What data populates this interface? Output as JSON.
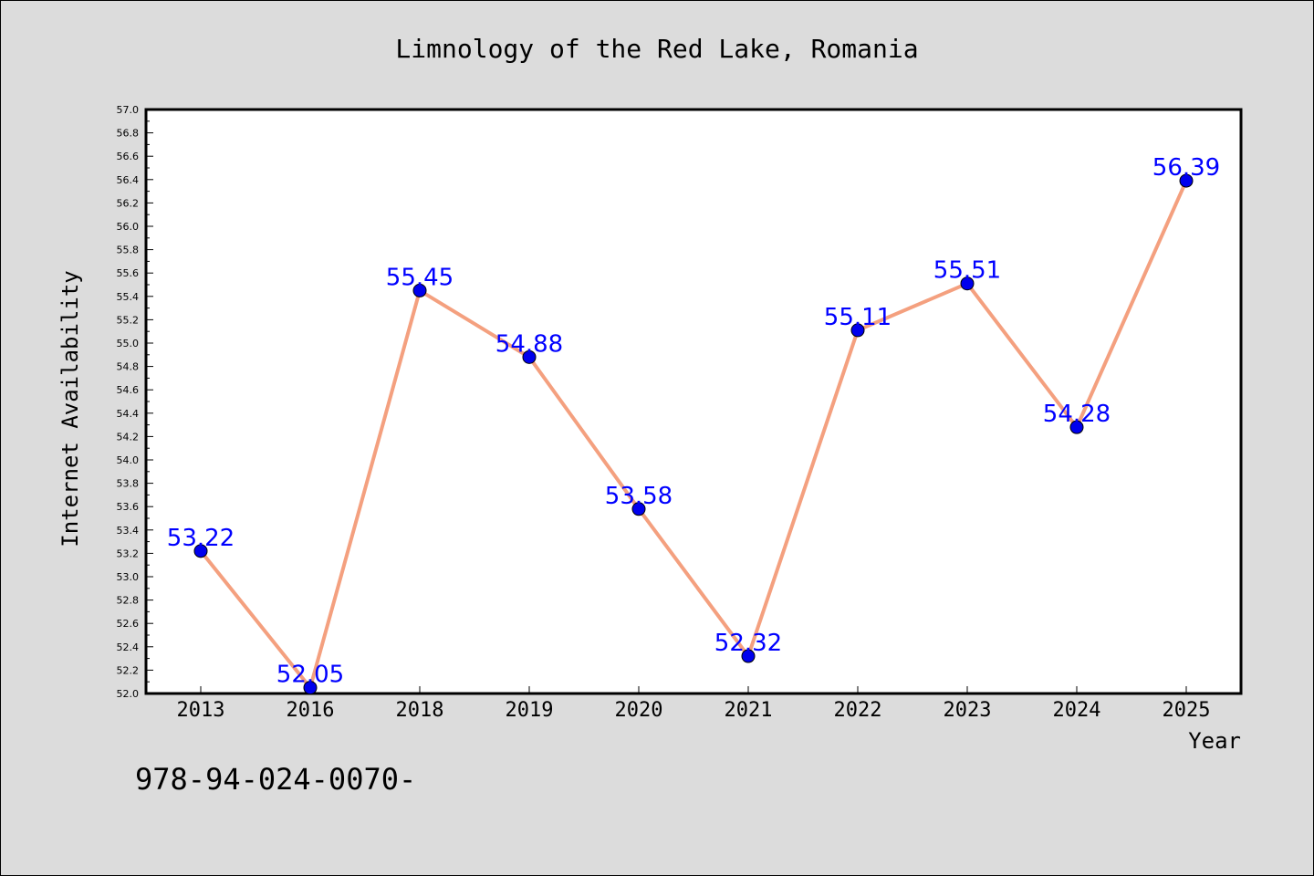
{
  "page": {
    "footer_text": "978-94-024-0070-"
  },
  "chart_data": {
    "type": "line",
    "title": "Limnology of the Red Lake, Romania",
    "xlabel": "Year",
    "ylabel": "Internet Availability",
    "categories": [
      "2013",
      "2016",
      "2018",
      "2019",
      "2020",
      "2021",
      "2022",
      "2023",
      "2024",
      "2025"
    ],
    "series": [
      {
        "values": [
          53.22,
          52.05,
          55.45,
          54.88,
          53.58,
          52.32,
          55.11,
          55.51,
          54.28,
          56.39
        ],
        "labels": [
          "53.22",
          "52.05",
          "55.45",
          "54.88",
          "53.58",
          "52.32",
          "55.11",
          "55.51",
          "54.28",
          "56.39"
        ],
        "line_color": "#f4a07f",
        "marker_color": "#0000ee",
        "label_color": "#0000ff"
      }
    ],
    "ylim": [
      52.0,
      57.0
    ],
    "y_ticks": [
      "52.0",
      "52.2",
      "52.4",
      "52.6",
      "52.8",
      "53.0",
      "53.2",
      "53.4",
      "53.6",
      "53.8",
      "54.0",
      "54.2",
      "54.4",
      "54.6",
      "54.8",
      "55.0",
      "55.2",
      "55.4",
      "55.6",
      "55.8",
      "56.0",
      "56.2",
      "56.4",
      "56.6",
      "56.8",
      "57.0"
    ],
    "grid": false,
    "legend": "none"
  }
}
